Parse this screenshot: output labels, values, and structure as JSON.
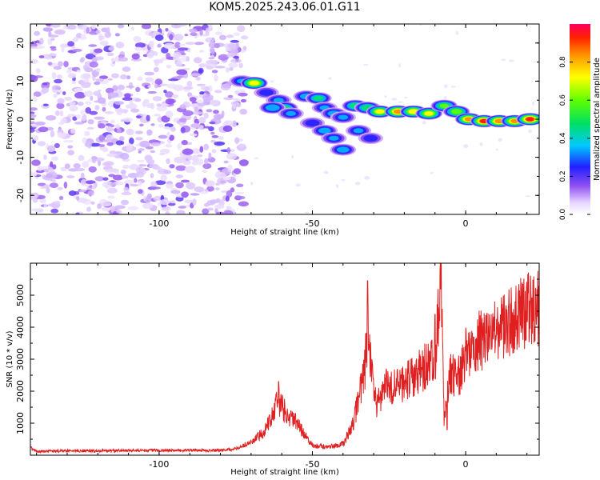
{
  "title": "KOM5.2025.243.06.01.G11",
  "chart_data": [
    {
      "type": "heatmap",
      "name": "spectrogram",
      "xlabel": "Height of straight line (km)",
      "ylabel": "Frequency (Hz)",
      "xlim": [
        -142,
        24
      ],
      "ylim": [
        -25,
        25
      ],
      "xticks": [
        -100,
        -50,
        0
      ],
      "xtick_labels": [
        "-100",
        "-50",
        "0"
      ],
      "yticks": [
        20,
        10,
        0,
        -10,
        -20
      ],
      "ytick_labels": [
        "20",
        "10",
        "0",
        "-10",
        "-20"
      ],
      "noise_region_x": [
        -142,
        -74
      ],
      "signal_blobs": [
        {
          "x": -73,
          "f": 10,
          "a": 0.3
        },
        {
          "x": -69,
          "f": 9.5,
          "a": 0.75
        },
        {
          "x": -65,
          "f": 7,
          "a": 0.25
        },
        {
          "x": -61,
          "f": 5,
          "a": 0.3
        },
        {
          "x": -59,
          "f": 3,
          "a": 0.45
        },
        {
          "x": -63,
          "f": 3,
          "a": 0.4
        },
        {
          "x": -57,
          "f": 1.5,
          "a": 0.3
        },
        {
          "x": -52,
          "f": 6,
          "a": 0.35
        },
        {
          "x": -48,
          "f": 5.5,
          "a": 0.45
        },
        {
          "x": -46,
          "f": 3,
          "a": 0.3
        },
        {
          "x": -43,
          "f": 1.5,
          "a": 0.35
        },
        {
          "x": -40,
          "f": 0.5,
          "a": 0.3
        },
        {
          "x": -50,
          "f": -1,
          "a": 0.25
        },
        {
          "x": -46,
          "f": -3,
          "a": 0.35
        },
        {
          "x": -43,
          "f": -5,
          "a": 0.3
        },
        {
          "x": -40,
          "f": -8,
          "a": 0.35
        },
        {
          "x": -36,
          "f": 3.5,
          "a": 0.5
        },
        {
          "x": -32,
          "f": 3,
          "a": 0.5
        },
        {
          "x": -28,
          "f": 2,
          "a": 0.7
        },
        {
          "x": -22,
          "f": 2,
          "a": 0.85
        },
        {
          "x": -17,
          "f": 2,
          "a": 0.75
        },
        {
          "x": -12,
          "f": 1.5,
          "a": 0.7
        },
        {
          "x": -7,
          "f": 3.5,
          "a": 0.55
        },
        {
          "x": -3,
          "f": 2,
          "a": 0.6
        },
        {
          "x": 1,
          "f": 0,
          "a": 0.8
        },
        {
          "x": 6,
          "f": -0.5,
          "a": 0.9
        },
        {
          "x": 11,
          "f": -0.5,
          "a": 0.85
        },
        {
          "x": 16,
          "f": -0.5,
          "a": 0.8
        },
        {
          "x": 21,
          "f": 0,
          "a": 0.9
        },
        {
          "x": -35,
          "f": -3,
          "a": 0.3
        },
        {
          "x": -31,
          "f": -5,
          "a": 0.25
        }
      ],
      "colorbar": {
        "label": "Normalized spectral amplitude",
        "range": [
          0.0,
          1.0
        ],
        "ticks": [
          0.0,
          0.2,
          0.4,
          0.6,
          0.8
        ],
        "tick_labels": [
          "0.0",
          "0.2",
          "0.4",
          "0.6",
          "0.8"
        ]
      }
    },
    {
      "type": "line",
      "name": "snr",
      "xlabel": "Height of straight line (km)",
      "ylabel": "SNR (10 * v/v)",
      "xlim": [
        -142,
        24
      ],
      "ylim": [
        0,
        6000
      ],
      "xticks": [
        -100,
        -50,
        0
      ],
      "xtick_labels": [
        "-100",
        "-50",
        "0"
      ],
      "yticks": [
        1000,
        2000,
        3000,
        4000,
        5000
      ],
      "ytick_labels": [
        "1000",
        "2000",
        "3000",
        "4000",
        "5000"
      ],
      "series_color": "#e02020",
      "envelope": [
        {
          "x": -142,
          "y": 250
        },
        {
          "x": -140,
          "y": 120
        },
        {
          "x": -120,
          "y": 140
        },
        {
          "x": -100,
          "y": 150
        },
        {
          "x": -80,
          "y": 150
        },
        {
          "x": -75,
          "y": 200
        },
        {
          "x": -70,
          "y": 400
        },
        {
          "x": -66,
          "y": 700
        },
        {
          "x": -63,
          "y": 1300
        },
        {
          "x": -61,
          "y": 1700
        },
        {
          "x": -58,
          "y": 1200
        },
        {
          "x": -55,
          "y": 1000
        },
        {
          "x": -53,
          "y": 700
        },
        {
          "x": -50,
          "y": 300
        },
        {
          "x": -45,
          "y": 250
        },
        {
          "x": -40,
          "y": 350
        },
        {
          "x": -37,
          "y": 900
        },
        {
          "x": -35,
          "y": 1700
        },
        {
          "x": -33,
          "y": 2600
        },
        {
          "x": -32,
          "y": 4000
        },
        {
          "x": -31,
          "y": 2800
        },
        {
          "x": -29,
          "y": 1500
        },
        {
          "x": -26,
          "y": 2300
        },
        {
          "x": -23,
          "y": 2100
        },
        {
          "x": -20,
          "y": 2300
        },
        {
          "x": -15,
          "y": 2600
        },
        {
          "x": -12,
          "y": 2900
        },
        {
          "x": -10,
          "y": 3000
        },
        {
          "x": -8,
          "y": 5200
        },
        {
          "x": -7,
          "y": 1000
        },
        {
          "x": -5,
          "y": 2500
        },
        {
          "x": -2,
          "y": 2500
        },
        {
          "x": 0,
          "y": 3200
        },
        {
          "x": 5,
          "y": 3600
        },
        {
          "x": 10,
          "y": 3800
        },
        {
          "x": 15,
          "y": 4200
        },
        {
          "x": 20,
          "y": 4500
        },
        {
          "x": 24,
          "y": 4700
        }
      ],
      "spikes": [
        {
          "x": -32,
          "y": 5450
        },
        {
          "x": -8,
          "y": 6000
        },
        {
          "x": -61,
          "y": 2300
        },
        {
          "x": -10,
          "y": 4400
        },
        {
          "x": -6,
          "y": 800
        }
      ]
    }
  ]
}
